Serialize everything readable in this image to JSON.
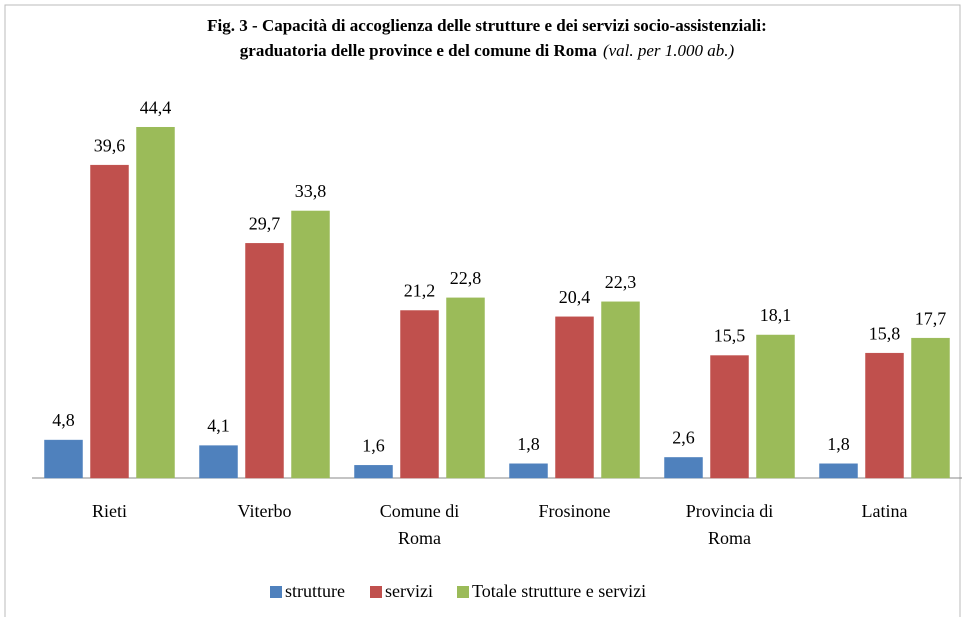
{
  "chart_data": {
    "type": "bar",
    "title": [
      "Fig. 3 - Capacità di accoglienza delle strutture e dei servizi socio-assistenziali:",
      "graduatoria delle province e del comune di Roma"
    ],
    "title_note": "(val. per 1.000 ab.)",
    "categories": [
      [
        "Rieti"
      ],
      [
        "Viterbo"
      ],
      [
        "Comune di",
        "Roma"
      ],
      [
        "Frosinone"
      ],
      [
        "Provincia di",
        "Roma"
      ],
      [
        "Latina"
      ]
    ],
    "series": [
      {
        "name": "strutture",
        "color": "#4f81bd",
        "values": [
          4.8,
          4.1,
          1.6,
          1.8,
          2.6,
          1.8
        ],
        "value_labels": [
          "4,8",
          "4,1",
          "1,6",
          "1,8",
          "2,6",
          "1,8"
        ]
      },
      {
        "name": "servizi",
        "color": "#c0504d",
        "values": [
          39.6,
          29.7,
          21.2,
          20.4,
          15.5,
          15.8
        ],
        "value_labels": [
          "39,6",
          "29,7",
          "21,2",
          "20,4",
          "15,5",
          "15,8"
        ]
      },
      {
        "name": "Totale strutture e servizi",
        "color": "#9bbb59",
        "values": [
          44.4,
          33.8,
          22.8,
          22.3,
          18.1,
          17.7
        ],
        "value_labels": [
          "44,4",
          "33,8",
          "22,8",
          "22,3",
          "18,1",
          "17,7"
        ]
      }
    ],
    "legend": "bottom"
  }
}
